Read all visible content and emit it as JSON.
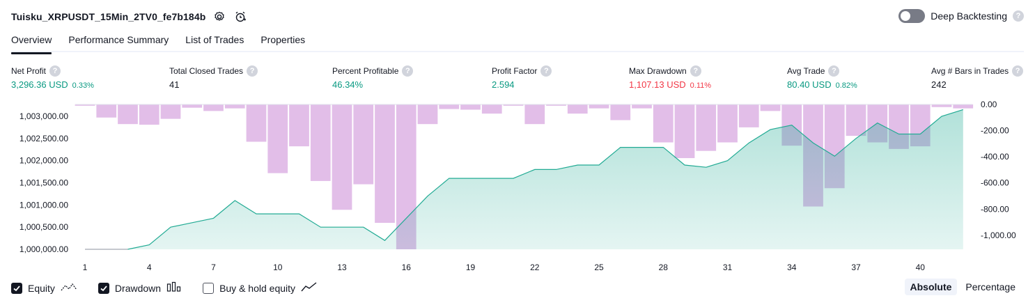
{
  "header": {
    "title": "Tuisku_XRPUSDT_15Min_2TV0_fe7b184b",
    "settings_icon": "gear-icon",
    "alert_icon": "add-alert-clock-icon"
  },
  "deep_backtesting": {
    "label": "Deep Backtesting",
    "enabled": false
  },
  "tabs": [
    {
      "label": "Overview",
      "active": true
    },
    {
      "label": "Performance Summary",
      "active": false
    },
    {
      "label": "List of Trades",
      "active": false
    },
    {
      "label": "Properties",
      "active": false
    }
  ],
  "metrics": [
    {
      "label": "Net Profit",
      "value": "3,296.36 USD",
      "pct": "0.33%",
      "color": "green"
    },
    {
      "label": "Total Closed Trades",
      "value": "41",
      "pct": "",
      "color": "plain"
    },
    {
      "label": "Percent Profitable",
      "value": "46.34%",
      "pct": "",
      "color": "green"
    },
    {
      "label": "Profit Factor",
      "value": "2.594",
      "pct": "",
      "color": "green"
    },
    {
      "label": "Max Drawdown",
      "value": "1,107.13 USD",
      "pct": "0.11%",
      "color": "red"
    },
    {
      "label": "Avg Trade",
      "value": "80.40 USD",
      "pct": "0.82%",
      "color": "green"
    },
    {
      "label": "Avg # Bars in Trades",
      "value": "242",
      "pct": "",
      "color": "plain"
    }
  ],
  "chart_data": {
    "type": "area",
    "x": [
      1,
      2,
      3,
      4,
      5,
      6,
      7,
      8,
      9,
      10,
      11,
      12,
      13,
      14,
      15,
      16,
      17,
      18,
      19,
      20,
      21,
      22,
      23,
      24,
      25,
      26,
      27,
      28,
      29,
      30,
      31,
      32,
      33,
      34,
      35,
      36,
      37,
      38,
      39,
      40,
      41,
      42
    ],
    "x_ticks": [
      "1",
      "4",
      "7",
      "10",
      "13",
      "16",
      "19",
      "22",
      "25",
      "28",
      "31",
      "34",
      "37",
      "40"
    ],
    "left_axis": {
      "ticks": [
        "1,000,000.00",
        "1,000,500.00",
        "1,001,000.00",
        "1,001,500.00",
        "1,002,000.00",
        "1,002,500.00",
        "1,003,000.00"
      ],
      "range": [
        1000000,
        1003000
      ]
    },
    "right_axis": {
      "ticks": [
        "0.00",
        "-200.00",
        "-400.00",
        "-600.00",
        "-800.00",
        "-1,000.00"
      ],
      "range": [
        -1100,
        0
      ]
    },
    "series": [
      {
        "name": "Equity",
        "axis": "left",
        "color": "#22ab94",
        "values": [
          1000000,
          1000000,
          1000000,
          1000100,
          1000500,
          1000600,
          1000700,
          1001100,
          1000800,
          1000800,
          1000800,
          1000500,
          1000500,
          1000500,
          1000200,
          1000700,
          1001200,
          1001600,
          1001600,
          1001600,
          1001600,
          1001800,
          1001800,
          1001900,
          1001900,
          1002300,
          1002300,
          1002300,
          1001900,
          1001850,
          1002000,
          1002400,
          1002700,
          1002800,
          1002400,
          1002100,
          1002500,
          1002850,
          1002600,
          1002600,
          1003000,
          1003150
        ]
      },
      {
        "name": "Drawdown",
        "axis": "right",
        "color": "#ce93d8",
        "values": [
          -10,
          -100,
          -150,
          -155,
          -110,
          -25,
          -50,
          -30,
          -285,
          -525,
          -320,
          -585,
          -805,
          -610,
          -905,
          -1107,
          -150,
          -35,
          -40,
          -70,
          -10,
          -150,
          -10,
          -70,
          -30,
          -120,
          -30,
          -290,
          -410,
          -355,
          -290,
          -175,
          -50,
          -315,
          -780,
          -640,
          -240,
          -290,
          -340,
          -320,
          -20,
          -30
        ]
      }
    ]
  },
  "legend": [
    {
      "label": "Equity",
      "checked": true,
      "icon": "equity-line-icon"
    },
    {
      "label": "Drawdown",
      "checked": true,
      "icon": "drawdown-bars-icon"
    },
    {
      "label": "Buy & hold equity",
      "checked": false,
      "icon": "buy-hold-line-icon"
    }
  ],
  "modes": [
    {
      "label": "Absolute",
      "active": true
    },
    {
      "label": "Percentage",
      "active": false
    }
  ]
}
